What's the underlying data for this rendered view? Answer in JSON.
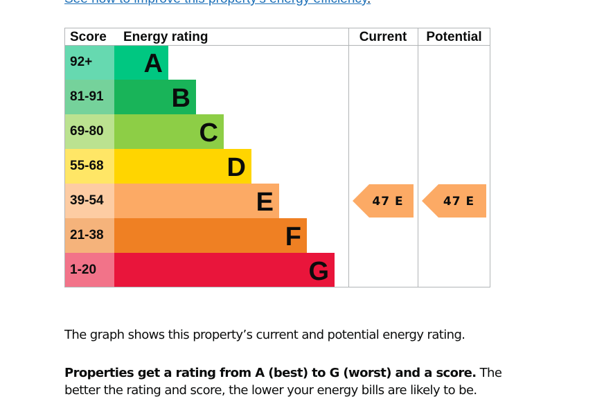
{
  "top_link": {
    "text": "See how to improve this property's energy efficiency",
    "tail": "."
  },
  "chart_data": {
    "type": "bar",
    "headers": {
      "score": "Score",
      "rating": "Energy rating",
      "current": "Current",
      "potential": "Potential"
    },
    "bands": [
      {
        "letter": "A",
        "range": "92+",
        "color": "#00c781",
        "range_color": "#66d9b0"
      },
      {
        "letter": "B",
        "range": "81-91",
        "color": "#19b459",
        "range_color": "#75d29b"
      },
      {
        "letter": "C",
        "range": "69-80",
        "color": "#8dce46",
        "range_color": "#bbe290"
      },
      {
        "letter": "D",
        "range": "55-68",
        "color": "#ffd500",
        "range_color": "#ffe666"
      },
      {
        "letter": "E",
        "range": "39-54",
        "color": "#fcaa65",
        "range_color": "#fdcca3"
      },
      {
        "letter": "F",
        "range": "21-38",
        "color": "#ef8023",
        "range_color": "#f5b37b"
      },
      {
        "letter": "G",
        "range": "1-20",
        "color": "#e9153b",
        "range_color": "#f27389"
      }
    ],
    "current": {
      "score": 47,
      "letter": "E",
      "label": "47 E"
    },
    "potential": {
      "score": 47,
      "letter": "E",
      "label": "47 E"
    }
  },
  "text": {
    "para1": "The graph shows this property’s current and potential energy rating.",
    "para2_bold": "Properties get a rating from A (best) to G (worst) and a score.",
    "para2_rest": " The better the rating and score, the lower your energy bills are likely to be."
  }
}
